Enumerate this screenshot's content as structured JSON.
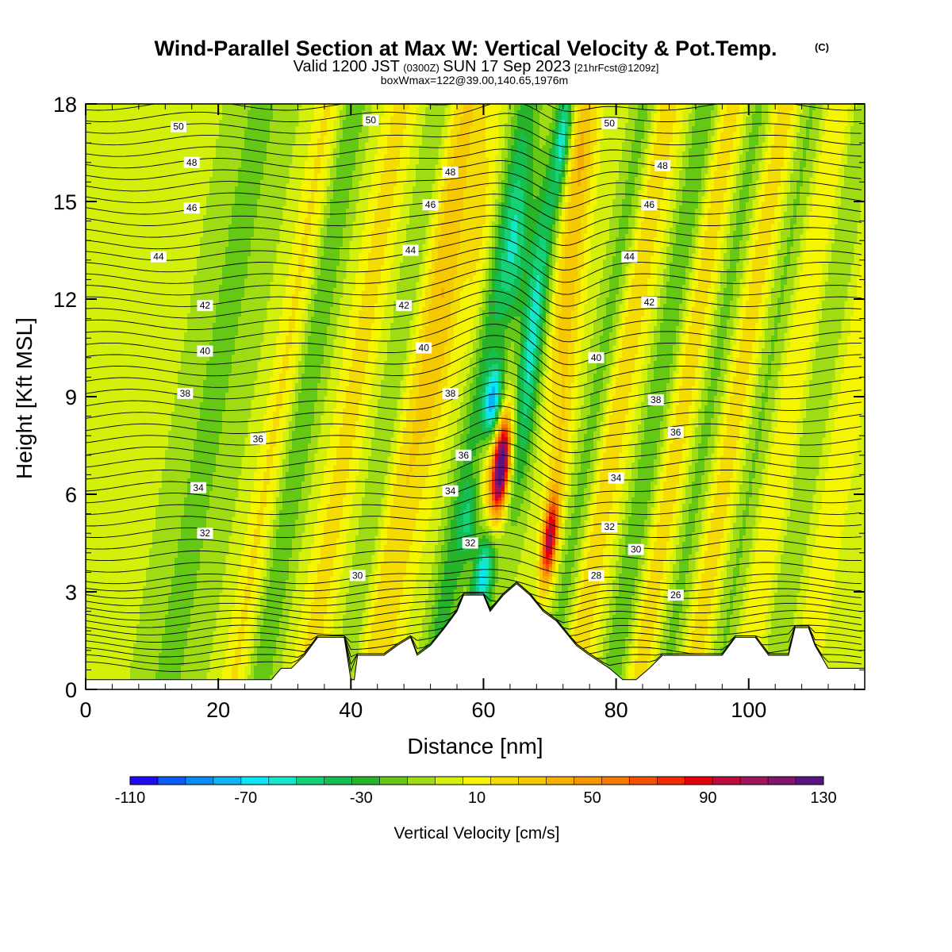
{
  "title": {
    "main": "Wind-Parallel Section at Max W: Vertical Velocity & Pot.Temp.",
    "copyright": "(C)",
    "valid_prefix": "Valid 1200 JST",
    "valid_utc": "(0300Z)",
    "valid_date": "SUN 17 Sep 2023",
    "forecast": "[21hrFcst@1209z]",
    "box_info": "boxWmax=122@39.00,140.65,1976m"
  },
  "chart_data": {
    "type": "heatmap",
    "xlabel": "Distance [nm]",
    "ylabel": "Height [Kft MSL]",
    "xlim": [
      0,
      117.5
    ],
    "ylim": [
      0,
      18
    ],
    "x_ticks": [
      "0",
      "20",
      "40",
      "60",
      "80",
      "100"
    ],
    "y_ticks": [
      "0",
      "3",
      "6",
      "9",
      "12",
      "15",
      "18"
    ],
    "colorbar": {
      "title": "Vertical Velocity [cm/s]",
      "levels": [
        -110,
        -100,
        -90,
        -80,
        -70,
        -60,
        -50,
        -40,
        -30,
        -20,
        -10,
        0,
        10,
        20,
        30,
        40,
        50,
        60,
        70,
        80,
        90,
        100,
        110,
        120,
        130
      ],
      "tick_labels": [
        "-110",
        "-70",
        "-30",
        "10",
        "50",
        "90",
        "130"
      ],
      "colors": [
        "#1e0af5",
        "#0a5af5",
        "#0a8cf5",
        "#0ab4f5",
        "#0ae6f5",
        "#14e6c8",
        "#14d278",
        "#14be50",
        "#28b428",
        "#64c814",
        "#a0dc14",
        "#d2f00a",
        "#f5f500",
        "#f5dc00",
        "#f5c800",
        "#f5af00",
        "#f59600",
        "#f57800",
        "#f55000",
        "#f52800",
        "#e6000a",
        "#be0a3c",
        "#a0145a",
        "#82146e",
        "#5a1482"
      ]
    },
    "terrain_kft": [
      [
        0,
        0.3
      ],
      [
        28,
        0.3
      ],
      [
        29.5,
        0.65
      ],
      [
        31,
        0.65
      ],
      [
        33,
        1.05
      ],
      [
        35,
        1.6
      ],
      [
        39,
        1.6
      ],
      [
        40,
        0.3
      ],
      [
        40.5,
        0.3
      ],
      [
        41,
        1.05
      ],
      [
        45,
        1.05
      ],
      [
        47,
        1.35
      ],
      [
        49,
        1.6
      ],
      [
        50,
        1.05
      ],
      [
        52,
        1.35
      ],
      [
        54,
        1.85
      ],
      [
        56,
        2.4
      ],
      [
        57,
        2.9
      ],
      [
        60,
        2.9
      ],
      [
        61,
        2.4
      ],
      [
        63,
        2.9
      ],
      [
        65,
        3.25
      ],
      [
        67,
        2.9
      ],
      [
        69,
        2.4
      ],
      [
        71,
        2.1
      ],
      [
        74,
        1.35
      ],
      [
        76,
        1.05
      ],
      [
        79,
        0.65
      ],
      [
        81,
        0.3
      ],
      [
        83,
        0.3
      ],
      [
        85,
        0.65
      ],
      [
        87,
        1.05
      ],
      [
        91,
        1.05
      ],
      [
        96,
        1.05
      ],
      [
        98,
        1.6
      ],
      [
        101,
        1.6
      ],
      [
        103,
        1.05
      ],
      [
        106,
        1.05
      ],
      [
        107,
        1.9
      ],
      [
        109,
        1.9
      ],
      [
        110,
        1.35
      ],
      [
        112,
        0.65
      ],
      [
        117.5,
        0.65
      ]
    ],
    "theta_contours": [
      {
        "label": "26",
        "value": 26,
        "labels_at": [
          [
            89,
            2.9
          ]
        ]
      },
      {
        "label": "28",
        "value": 28,
        "labels_at": [
          [
            77,
            3.5
          ]
        ]
      },
      {
        "label": "30",
        "value": 30,
        "labels_at": [
          [
            41,
            3.5
          ],
          [
            83,
            4.3
          ]
        ]
      },
      {
        "label": "32",
        "value": 32,
        "labels_at": [
          [
            18,
            4.8
          ],
          [
            58,
            4.5
          ],
          [
            79,
            5.0
          ]
        ]
      },
      {
        "label": "34",
        "value": 34,
        "labels_at": [
          [
            17,
            6.2
          ],
          [
            55,
            6.1
          ],
          [
            80,
            6.5
          ]
        ]
      },
      {
        "label": "36",
        "value": 36,
        "labels_at": [
          [
            26,
            7.7
          ],
          [
            57,
            7.2
          ],
          [
            89,
            7.9
          ]
        ]
      },
      {
        "label": "38",
        "value": 38,
        "labels_at": [
          [
            15,
            9.1
          ],
          [
            55,
            9.1
          ],
          [
            86,
            8.9
          ]
        ]
      },
      {
        "label": "40",
        "value": 40,
        "labels_at": [
          [
            18,
            10.4
          ],
          [
            51,
            10.5
          ],
          [
            77,
            10.2
          ]
        ]
      },
      {
        "label": "42",
        "value": 42,
        "labels_at": [
          [
            18,
            11.8
          ],
          [
            48,
            11.8
          ],
          [
            85,
            11.9
          ]
        ]
      },
      {
        "label": "44",
        "value": 44,
        "labels_at": [
          [
            11,
            13.3
          ],
          [
            49,
            13.5
          ],
          [
            82,
            13.3
          ]
        ]
      },
      {
        "label": "46",
        "value": 46,
        "labels_at": [
          [
            16,
            14.8
          ],
          [
            52,
            14.9
          ],
          [
            85,
            14.9
          ]
        ]
      },
      {
        "label": "48",
        "value": 48,
        "labels_at": [
          [
            16,
            16.2
          ],
          [
            55,
            15.9
          ],
          [
            87,
            16.1
          ]
        ]
      },
      {
        "label": "50",
        "value": 50,
        "labels_at": [
          [
            14,
            17.3
          ],
          [
            43,
            17.5
          ],
          [
            79,
            17.4
          ]
        ]
      }
    ]
  }
}
